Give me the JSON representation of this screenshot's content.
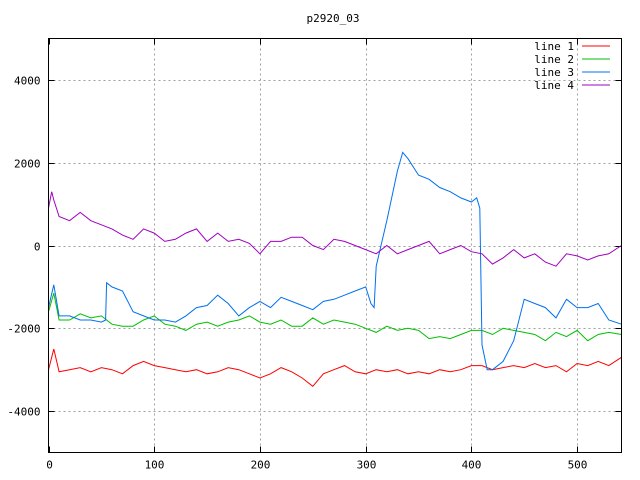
{
  "chart_data": {
    "type": "line",
    "title": "p2920_03",
    "xlabel": "",
    "ylabel": "",
    "xlim": [
      0,
      542
    ],
    "ylim": [
      -5000,
      5000
    ],
    "x_ticks": [
      0,
      100,
      200,
      300,
      400,
      500
    ],
    "y_ticks": [
      -4000,
      -2000,
      0,
      2000,
      4000
    ],
    "grid": true,
    "legend_position": "top-right",
    "series": [
      {
        "name": "line 1",
        "color": "#ff0000",
        "x": [
          0,
          5,
          10,
          20,
          30,
          40,
          50,
          60,
          70,
          80,
          90,
          100,
          110,
          120,
          130,
          140,
          150,
          160,
          170,
          180,
          190,
          200,
          210,
          220,
          230,
          240,
          250,
          260,
          270,
          280,
          290,
          300,
          310,
          320,
          330,
          340,
          350,
          360,
          370,
          380,
          390,
          400,
          410,
          420,
          430,
          440,
          450,
          460,
          470,
          480,
          490,
          500,
          510,
          520,
          530,
          542
        ],
        "y": [
          -3000,
          -2500,
          -3050,
          -3000,
          -2950,
          -3050,
          -2950,
          -3000,
          -3100,
          -2900,
          -2800,
          -2900,
          -2950,
          -3000,
          -3050,
          -3000,
          -3100,
          -3050,
          -2950,
          -3000,
          -3100,
          -3200,
          -3100,
          -2950,
          -3050,
          -3200,
          -3400,
          -3100,
          -3000,
          -2900,
          -3050,
          -3100,
          -3000,
          -3050,
          -3000,
          -3100,
          -3050,
          -3100,
          -3000,
          -3050,
          -3000,
          -2900,
          -2900,
          -3000,
          -2950,
          -2900,
          -2950,
          -2850,
          -2950,
          -2900,
          -3050,
          -2850,
          -2900,
          -2800,
          -2900,
          -2700
        ]
      },
      {
        "name": "line 2",
        "color": "#00c000",
        "x": [
          0,
          5,
          10,
          20,
          30,
          40,
          50,
          60,
          70,
          80,
          90,
          100,
          110,
          120,
          130,
          140,
          150,
          160,
          170,
          180,
          190,
          200,
          210,
          220,
          230,
          240,
          250,
          260,
          270,
          280,
          290,
          300,
          310,
          320,
          330,
          340,
          350,
          360,
          370,
          380,
          390,
          400,
          410,
          420,
          430,
          440,
          450,
          460,
          470,
          480,
          490,
          500,
          510,
          520,
          530,
          542
        ],
        "y": [
          -1600,
          -1150,
          -1800,
          -1800,
          -1650,
          -1750,
          -1700,
          -1900,
          -1950,
          -1950,
          -1800,
          -1700,
          -1900,
          -1950,
          -2050,
          -1900,
          -1850,
          -1950,
          -1850,
          -1800,
          -1700,
          -1850,
          -1900,
          -1800,
          -1950,
          -1950,
          -1750,
          -1900,
          -1800,
          -1850,
          -1900,
          -2000,
          -2100,
          -1950,
          -2050,
          -2000,
          -2050,
          -2250,
          -2200,
          -2250,
          -2150,
          -2050,
          -2050,
          -2150,
          -2000,
          -2050,
          -2100,
          -2150,
          -2300,
          -2100,
          -2200,
          -2050,
          -2300,
          -2150,
          -2100,
          -2150
        ]
      },
      {
        "name": "line 3",
        "color": "#0070f0",
        "x": [
          0,
          5,
          10,
          20,
          30,
          40,
          50,
          54,
          55,
          60,
          70,
          80,
          90,
          100,
          110,
          120,
          130,
          140,
          150,
          160,
          170,
          180,
          190,
          200,
          210,
          220,
          230,
          240,
          250,
          260,
          270,
          280,
          290,
          300,
          305,
          308,
          310,
          320,
          330,
          335,
          340,
          350,
          360,
          370,
          380,
          390,
          400,
          405,
          408,
          410,
          415,
          420,
          430,
          440,
          450,
          460,
          470,
          480,
          490,
          500,
          510,
          520,
          530,
          542
        ],
        "y": [
          -1500,
          -950,
          -1700,
          -1700,
          -1800,
          -1800,
          -1850,
          -1800,
          -900,
          -1000,
          -1100,
          -1600,
          -1700,
          -1800,
          -1800,
          -1850,
          -1700,
          -1500,
          -1450,
          -1200,
          -1400,
          -1700,
          -1500,
          -1350,
          -1500,
          -1250,
          -1350,
          -1450,
          -1550,
          -1350,
          -1300,
          -1200,
          -1100,
          -1000,
          -1400,
          -1500,
          -500,
          600,
          1800,
          2250,
          2100,
          1700,
          1600,
          1400,
          1300,
          1150,
          1050,
          1150,
          900,
          -2400,
          -3000,
          -3000,
          -2800,
          -2300,
          -1300,
          -1400,
          -1500,
          -1750,
          -1300,
          -1500,
          -1500,
          -1400,
          -1800,
          -1900
        ]
      },
      {
        "name": "line 4",
        "color": "#a000c0",
        "x": [
          0,
          3,
          5,
          10,
          20,
          30,
          40,
          50,
          60,
          70,
          80,
          90,
          100,
          110,
          120,
          130,
          140,
          150,
          160,
          170,
          180,
          190,
          200,
          210,
          220,
          230,
          240,
          250,
          260,
          270,
          280,
          290,
          300,
          310,
          320,
          330,
          340,
          350,
          360,
          370,
          380,
          390,
          400,
          410,
          420,
          430,
          440,
          450,
          460,
          470,
          480,
          490,
          500,
          510,
          520,
          530,
          542
        ],
        "y": [
          900,
          1300,
          1100,
          700,
          600,
          800,
          600,
          500,
          400,
          250,
          150,
          400,
          300,
          100,
          150,
          300,
          400,
          100,
          300,
          100,
          150,
          50,
          -200,
          100,
          100,
          200,
          200,
          0,
          -100,
          150,
          100,
          0,
          -100,
          -200,
          0,
          -200,
          -100,
          0,
          100,
          -200,
          -100,
          0,
          -150,
          -200,
          -450,
          -300,
          -100,
          -300,
          -200,
          -400,
          -500,
          -200,
          -250,
          -350,
          -250,
          -200,
          0
        ]
      }
    ]
  }
}
